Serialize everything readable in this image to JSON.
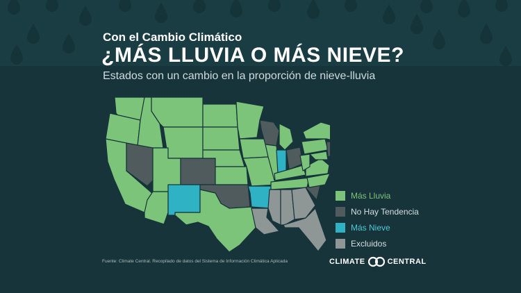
{
  "header": {
    "kicker": "Con el Cambio Climático",
    "title": "¿MÁS LLUVIA O MÁS NIEVE?",
    "subtitle": "Estados con un cambio en la proporción de nieve-lluvia"
  },
  "legend": [
    {
      "label": "Más Lluvia",
      "color": "#7cc47a",
      "text_color": "#7cc47a"
    },
    {
      "label": "No Hay Tendencia",
      "color": "#4f5b5c",
      "text_color": "#d7dfe0"
    },
    {
      "label": "Más Nieve",
      "color": "#2fb3c4",
      "text_color": "#4fc9d6"
    },
    {
      "label": "Excluidos",
      "color": "#8e9696",
      "text_color": "#d7dfe0"
    }
  ],
  "map_data": {
    "categories": {
      "Más Lluvia": [
        "WA",
        "OR",
        "CA",
        "ID",
        "MT",
        "WY",
        "UT",
        "AZ",
        "ND",
        "SD",
        "NE",
        "KS",
        "MN",
        "IA",
        "MO",
        "IL",
        "KY",
        "TN",
        "TX",
        "MI",
        "WV",
        "VA",
        "NC",
        "PA",
        "NY",
        "ME",
        "NH",
        "MA",
        "MD"
      ],
      "No Hay Tendencia": [
        "NV",
        "CO",
        "OK",
        "WI",
        "OH",
        "SC",
        "VT",
        "NJ"
      ],
      "Más Nieve": [
        "NM",
        "AR",
        "IN"
      ],
      "Excluidos": [
        "LA",
        "MS",
        "AL",
        "GA",
        "FL"
      ]
    }
  },
  "footer": {
    "source": "Fuente: Climate Central. Recopilado de datos del Sistema de Información Climática Aplicada",
    "logo_left": "CLIMATE",
    "logo_right": "CENTRAL"
  }
}
